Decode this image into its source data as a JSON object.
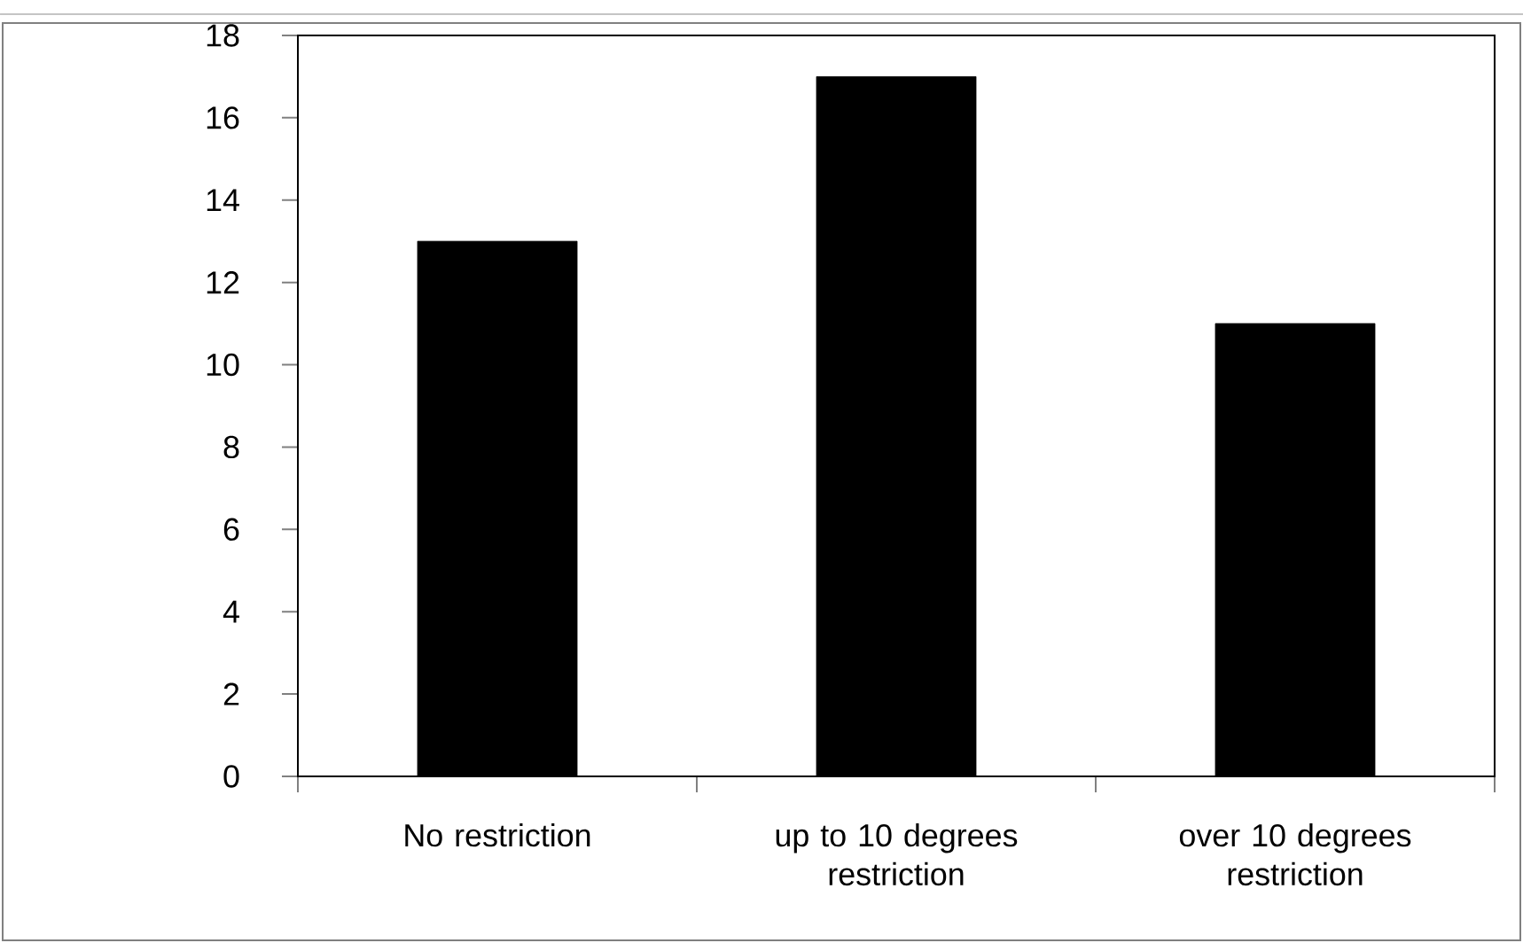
{
  "chart_data": {
    "type": "bar",
    "categories": [
      "No restriction",
      "up to 10 degrees restriction",
      "over 10 degrees restriction"
    ],
    "values": [
      13,
      17,
      11
    ],
    "color": "#000000",
    "ylim": [
      0,
      18
    ],
    "yticks": [
      0,
      2,
      4,
      6,
      8,
      10,
      12,
      14,
      16,
      18
    ],
    "grid": false
  }
}
